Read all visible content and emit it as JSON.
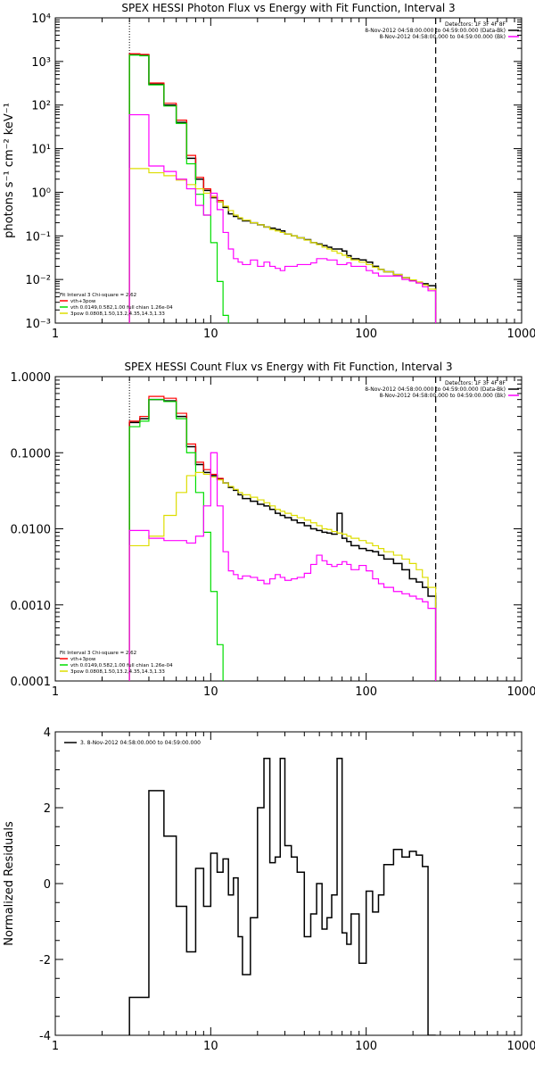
{
  "chart_data": [
    {
      "type": "line",
      "title": "SPEX HESSI Photon Flux vs Energy with Fit Function, Interval 3",
      "ylabel": "photons s⁻¹ cm⁻² keV⁻¹",
      "xlabel": "",
      "xscale": "log",
      "yscale": "log",
      "xlim": [
        1,
        1000
      ],
      "ylim": [
        0.001,
        10000
      ],
      "xticks": [
        1,
        10,
        100,
        1000
      ],
      "xtick_labels": [
        "1",
        "10",
        "100",
        "1000"
      ],
      "yticks": [
        0.001,
        0.01,
        0.1,
        1,
        10,
        100,
        1000,
        10000
      ],
      "ytick_labels": [
        "10⁻³",
        "10⁻²",
        "10⁻¹",
        "10⁰",
        "10¹",
        "10²",
        "10³",
        "10⁴"
      ],
      "vlines": [
        {
          "x": 3,
          "style": "dotted"
        },
        {
          "x": 280,
          "style": "dashed"
        }
      ],
      "legend_top": [
        "Detectors: 1F 3F 4F 8F",
        "8-Nov-2012 04:58:00.000 to 04:59:00.000 (Data-Bk)",
        "8-Nov-2012 04:58:00.000 to 04:59:00.000 (Bk)"
      ],
      "legend_top_colors": [
        "",
        "#000000",
        "#ff00ff"
      ],
      "legend_bottom": [
        "Fit Interval 3   Chi-square = 2.62",
        "vth+3pow",
        "vth 0.0149,0.582,1.00  full chian 1.26e-04",
        "3pow 0.0808,1.50,13.2,4.35,14.3,1.33"
      ],
      "legend_bottom_colors": [
        "",
        "#ff0000",
        "#00dd00",
        "#dddd00"
      ],
      "series": [
        {
          "color": "#000000",
          "edges": [
            3,
            3.5,
            4,
            5,
            6,
            7,
            8,
            9,
            10,
            11,
            12,
            13,
            14,
            15,
            16,
            18,
            20,
            22,
            24,
            26,
            28,
            30,
            33,
            36,
            40,
            44,
            48,
            52,
            56,
            60,
            65,
            70,
            75,
            80,
            90,
            100,
            110,
            120,
            130,
            150,
            170,
            190,
            210,
            230,
            250,
            280
          ],
          "values": [
            1450.0,
            1400.0,
            300,
            100,
            40,
            6,
            2,
            1.1,
            0.75,
            0.6,
            0.45,
            0.32,
            0.28,
            0.25,
            0.22,
            0.2,
            0.18,
            0.16,
            0.15,
            0.14,
            0.13,
            0.11,
            0.1,
            0.09,
            0.082,
            0.07,
            0.065,
            0.06,
            0.055,
            0.05,
            0.05,
            0.045,
            0.035,
            0.03,
            0.028,
            0.025,
            0.02,
            0.017,
            0.015,
            0.013,
            0.011,
            0.0095,
            0.0085,
            0.008,
            0.0072
          ]
        },
        {
          "color": "#ff0000",
          "edges": [
            3,
            3.5,
            4,
            5,
            6,
            7,
            8,
            9,
            10,
            11,
            12
          ],
          "values": [
            1500.0,
            1450.0,
            320,
            110,
            45,
            7,
            2.2,
            1.2,
            0.8,
            0.65,
            0.5
          ]
        },
        {
          "color": "#00dd00",
          "edges": [
            3,
            3.5,
            4,
            5,
            6,
            7,
            8,
            9,
            10,
            11,
            12,
            13
          ],
          "values": [
            1400.0,
            1350.0,
            290,
            95,
            38,
            4.5,
            0.9,
            0.3,
            0.07,
            0.009,
            0.0015
          ]
        },
        {
          "color": "#dddd00",
          "edges": [
            3,
            4,
            5,
            6,
            7,
            8,
            9,
            10,
            11,
            12,
            13,
            14,
            15,
            16,
            18,
            20,
            22,
            24,
            26,
            28,
            30,
            33,
            36,
            40,
            44,
            48,
            52,
            56,
            60,
            65,
            70,
            75,
            80,
            90,
            100,
            110,
            120,
            130,
            150,
            170,
            190,
            210,
            230,
            250,
            280
          ],
          "values": [
            3.5,
            2.8,
            2.4,
            1.9,
            1.5,
            1.2,
            0.95,
            0.78,
            0.6,
            0.48,
            0.38,
            0.3,
            0.26,
            0.23,
            0.2,
            0.18,
            0.16,
            0.14,
            0.13,
            0.12,
            0.11,
            0.1,
            0.09,
            0.08,
            0.07,
            0.063,
            0.055,
            0.05,
            0.045,
            0.04,
            0.036,
            0.032,
            0.028,
            0.025,
            0.022,
            0.019,
            0.017,
            0.015,
            0.013,
            0.011,
            0.0098,
            0.0088,
            0.0075,
            0.006
          ]
        },
        {
          "color": "#ff00ff",
          "edges": [
            3,
            3.5,
            4,
            5,
            6,
            7,
            8,
            9,
            10,
            11,
            12,
            13,
            14,
            15,
            16,
            18,
            20,
            22,
            24,
            26,
            28,
            30,
            33,
            36,
            40,
            44,
            48,
            52,
            56,
            60,
            65,
            70,
            75,
            80,
            90,
            100,
            110,
            120,
            130,
            150,
            170,
            190,
            210,
            230,
            250,
            280
          ],
          "values": [
            60,
            60,
            4,
            3,
            2,
            1.2,
            0.5,
            0.3,
            0.95,
            0.4,
            0.12,
            0.05,
            0.03,
            0.025,
            0.022,
            0.028,
            0.02,
            0.025,
            0.02,
            0.018,
            0.016,
            0.02,
            0.02,
            0.022,
            0.022,
            0.024,
            0.03,
            0.03,
            0.028,
            0.028,
            0.022,
            0.022,
            0.024,
            0.02,
            0.02,
            0.016,
            0.014,
            0.012,
            0.012,
            0.012,
            0.01,
            0.0092,
            0.0083,
            0.0068,
            0.0055
          ]
        }
      ]
    },
    {
      "type": "line",
      "title": "SPEX HESSI Count Flux vs Energy with Fit Function, Interval 3",
      "ylabel": "",
      "xlabel": "",
      "xscale": "log",
      "yscale": "log",
      "xlim": [
        1,
        1000
      ],
      "ylim": [
        0.0001,
        1
      ],
      "xticks": [
        1,
        10,
        100,
        1000
      ],
      "xtick_labels": [
        "1",
        "10",
        "100",
        "1000"
      ],
      "yticks": [
        0.0001,
        0.001,
        0.01,
        0.1,
        1
      ],
      "ytick_labels": [
        "0.0001",
        "0.0010",
        "0.0100",
        "0.1000",
        "1.0000"
      ],
      "vlines": [
        {
          "x": 3,
          "style": "dotted"
        },
        {
          "x": 280,
          "style": "dashed"
        }
      ],
      "legend_top": [
        "Detectors: 1F 3F 4F 8F",
        "8-Nov-2012 04:58:00.000 to 04:59:00.000 (Data-Bk)",
        "8-Nov-2012 04:58:00.000 to 04:59:00.000 (Bk)"
      ],
      "legend_top_colors": [
        "",
        "#000000",
        "#ff00ff"
      ],
      "legend_bottom": [
        "Fit Interval 3   Chi-square = 2.62",
        "vth+3pow",
        "vth 0.0149,0.582,1.00  full chian 1.26e-04",
        "3pow 0.0808,1.50,13.2,4.35,14.3,1.33"
      ],
      "legend_bottom_colors": [
        "",
        "#ff0000",
        "#00dd00",
        "#dddd00"
      ],
      "series": [
        {
          "color": "#000000",
          "edges": [
            3,
            3.5,
            4,
            5,
            6,
            7,
            8,
            9,
            10,
            11,
            12,
            13,
            14,
            15,
            16,
            18,
            20,
            22,
            24,
            26,
            28,
            30,
            33,
            36,
            40,
            44,
            48,
            52,
            56,
            60,
            65,
            70,
            75,
            80,
            90,
            100,
            110,
            120,
            130,
            150,
            170,
            190,
            210,
            230,
            250,
            280
          ],
          "values": [
            0.25,
            0.28,
            0.5,
            0.48,
            0.3,
            0.12,
            0.07,
            0.055,
            0.05,
            0.045,
            0.04,
            0.035,
            0.032,
            0.028,
            0.025,
            0.023,
            0.021,
            0.02,
            0.018,
            0.016,
            0.015,
            0.014,
            0.013,
            0.012,
            0.011,
            0.01,
            0.0095,
            0.009,
            0.0088,
            0.0085,
            0.016,
            0.0075,
            0.0068,
            0.006,
            0.0055,
            0.0052,
            0.005,
            0.0045,
            0.004,
            0.0035,
            0.0029,
            0.0022,
            0.002,
            0.0017,
            0.0013
          ]
        },
        {
          "color": "#ff0000",
          "edges": [
            3,
            3.5,
            4,
            5,
            6,
            7,
            8,
            9,
            10,
            11,
            12
          ],
          "values": [
            0.26,
            0.3,
            0.55,
            0.52,
            0.33,
            0.13,
            0.075,
            0.06,
            0.052,
            0.046,
            0.041
          ]
        },
        {
          "color": "#00dd00",
          "edges": [
            3,
            3.5,
            4,
            5,
            6,
            7,
            8,
            9,
            10,
            11,
            12,
            13
          ],
          "values": [
            0.22,
            0.26,
            0.5,
            0.47,
            0.28,
            0.1,
            0.03,
            0.009,
            0.0015,
            0.0003,
            8e-05
          ]
        },
        {
          "color": "#dddd00",
          "edges": [
            3,
            4,
            5,
            6,
            7,
            8,
            9,
            10,
            11,
            12,
            13,
            14,
            15,
            16,
            18,
            20,
            22,
            24,
            26,
            28,
            30,
            33,
            36,
            40,
            44,
            48,
            52,
            56,
            60,
            65,
            70,
            75,
            80,
            90,
            100,
            110,
            120,
            130,
            150,
            170,
            190,
            210,
            230,
            250,
            280
          ],
          "values": [
            0.006,
            0.008,
            0.015,
            0.03,
            0.05,
            0.055,
            0.052,
            0.048,
            0.044,
            0.04,
            0.036,
            0.033,
            0.03,
            0.028,
            0.026,
            0.024,
            0.022,
            0.02,
            0.018,
            0.017,
            0.016,
            0.015,
            0.014,
            0.013,
            0.012,
            0.011,
            0.01,
            0.0098,
            0.0092,
            0.0088,
            0.0085,
            0.008,
            0.0075,
            0.007,
            0.0065,
            0.006,
            0.0055,
            0.005,
            0.0045,
            0.004,
            0.0035,
            0.0029,
            0.0023,
            0.0017
          ]
        },
        {
          "color": "#ff00ff",
          "edges": [
            3,
            4,
            5,
            6,
            7,
            8,
            9,
            10,
            11,
            12,
            13,
            14,
            15,
            16,
            18,
            20,
            22,
            24,
            26,
            28,
            30,
            33,
            36,
            40,
            44,
            48,
            52,
            56,
            60,
            65,
            70,
            75,
            80,
            90,
            100,
            110,
            120,
            130,
            150,
            170,
            190,
            210,
            230,
            250,
            280
          ],
          "values": [
            0.0095,
            0.0075,
            0.007,
            0.007,
            0.0065,
            0.008,
            0.02,
            0.1,
            0.02,
            0.005,
            0.0028,
            0.0025,
            0.0022,
            0.0024,
            0.0023,
            0.0021,
            0.0019,
            0.0022,
            0.0025,
            0.0023,
            0.0021,
            0.0022,
            0.0023,
            0.0026,
            0.0034,
            0.0045,
            0.0038,
            0.0034,
            0.0032,
            0.0034,
            0.0037,
            0.0034,
            0.0029,
            0.0033,
            0.0028,
            0.0022,
            0.0019,
            0.0017,
            0.0015,
            0.0014,
            0.0013,
            0.0012,
            0.0011,
            0.0009
          ]
        }
      ]
    },
    {
      "type": "line",
      "title": "",
      "ylabel": "Normalized Residuals",
      "xlabel": "",
      "xscale": "log",
      "yscale": "linear",
      "xlim": [
        1,
        1000
      ],
      "ylim": [
        -4,
        4
      ],
      "xticks": [
        1,
        10,
        100,
        1000
      ],
      "xtick_labels": [
        "1",
        "10",
        "100",
        "1000"
      ],
      "yticks": [
        -4,
        -2,
        0,
        2,
        4
      ],
      "ytick_labels": [
        "-4",
        "-2",
        "0",
        "2",
        "4"
      ],
      "legend_top": [
        "3.  8-Nov-2012 04:58:00.000 to 04:59:00.000"
      ],
      "legend_top_colors": [
        "#000000"
      ],
      "series": [
        {
          "color": "#000000",
          "edges": [
            3,
            3.5,
            4,
            5,
            6,
            7,
            8,
            9,
            10,
            11,
            12,
            13,
            14,
            15,
            16,
            18,
            20,
            22,
            24,
            26,
            28,
            30,
            33,
            36,
            40,
            44,
            48,
            52,
            56,
            60,
            65,
            70,
            75,
            80,
            90,
            100,
            110,
            120,
            130,
            150,
            170,
            190,
            210,
            230,
            250,
            280
          ],
          "values": [
            -3,
            -3,
            2.45,
            1.25,
            -0.6,
            -1.8,
            0.4,
            -0.6,
            0.8,
            0.3,
            0.65,
            -0.3,
            0.15,
            -1.4,
            -2.4,
            -0.9,
            2,
            3.3,
            0.55,
            0.7,
            3.3,
            1,
            0.7,
            0.3,
            -1.4,
            -0.8,
            0,
            -1.2,
            -0.9,
            -0.3,
            3.3,
            -1.3,
            -1.6,
            -0.8,
            -2.1,
            -0.2,
            -0.75,
            -0.3,
            0.5,
            0.9,
            0.7,
            0.85,
            0.75,
            0.45,
            -4
          ]
        }
      ]
    }
  ]
}
